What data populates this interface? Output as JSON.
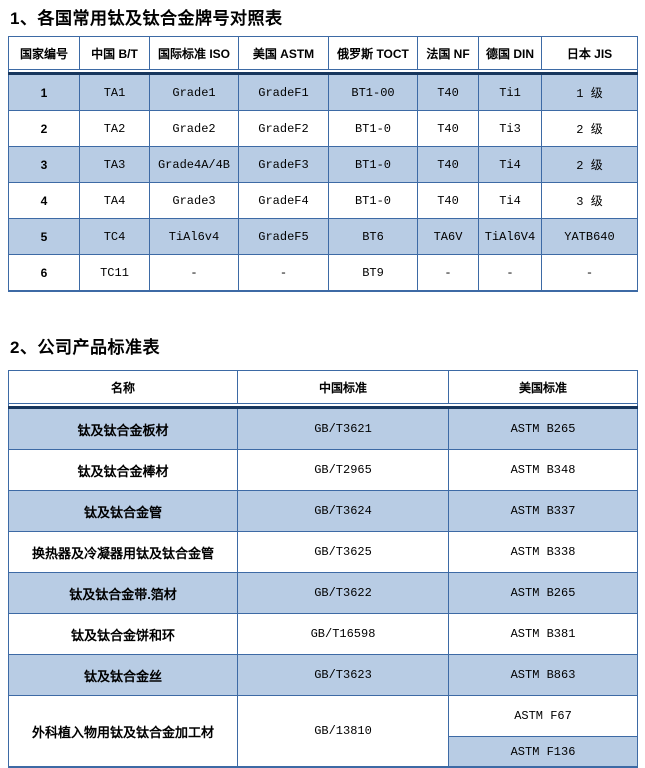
{
  "colors": {
    "row_shade": "#b8cce4",
    "grid_border": "#3d6aa5",
    "header_rule": "#17365d",
    "text": "#000000"
  },
  "section1": {
    "title": "1、各国常用钛及钛合金牌号对照表",
    "table": {
      "headers": [
        "国家编号",
        "中国 B/T",
        "国际标准 ISO",
        "美国 ASTM",
        "俄罗斯 TOCT",
        "法国 NF",
        "德国 DIN",
        "日本 JIS"
      ],
      "rows": [
        [
          "1",
          "TA1",
          "Grade1",
          "GradeF1",
          "BT1-00",
          "T40",
          "Ti1",
          "1 级"
        ],
        [
          "2",
          "TA2",
          "Grade2",
          "GradeF2",
          "BT1-0",
          "T40",
          "Ti3",
          "2 级"
        ],
        [
          "3",
          "TA3",
          "Grade4A/4B",
          "GradeF3",
          "BT1-0",
          "T40",
          "Ti4",
          "2 级"
        ],
        [
          "4",
          "TA4",
          "Grade3",
          "GradeF4",
          "BT1-0",
          "T40",
          "Ti4",
          "3 级"
        ],
        [
          "5",
          "TC4",
          "TiAl6v4",
          "GradeF5",
          "BT6",
          "TA6V",
          "TiAl6V4",
          "YATB640"
        ],
        [
          "6",
          "TC11",
          "-",
          "-",
          "BT9",
          "-",
          "-",
          "-"
        ]
      ]
    }
  },
  "section2": {
    "title": "2、公司产品标准表",
    "table": {
      "headers": [
        "名称",
        "中国标准",
        "美国标准"
      ],
      "rows": [
        {
          "name": "钛及钛合金板材",
          "cn": "GB/T3621",
          "us": [
            "ASTM B265"
          ]
        },
        {
          "name": "钛及钛合金棒材",
          "cn": "GB/T2965",
          "us": [
            "ASTM B348"
          ]
        },
        {
          "name": "钛及钛合金管",
          "cn": "GB/T3624",
          "us": [
            "ASTM B337"
          ]
        },
        {
          "name": "换热器及冷凝器用钛及钛合金管",
          "cn": "GB/T3625",
          "us": [
            "ASTM B338"
          ]
        },
        {
          "name": "钛及钛合金带.箔材",
          "cn": "GB/T3622",
          "us": [
            "ASTM B265"
          ]
        },
        {
          "name": "钛及钛合金饼和环",
          "cn": "GB/T16598",
          "us": [
            "ASTM B381"
          ]
        },
        {
          "name": "钛及钛合金丝",
          "cn": "GB/T3623",
          "us": [
            "ASTM B863"
          ]
        },
        {
          "name": "外科植入物用钛及钛合金加工材",
          "cn": "GB/13810",
          "us": [
            "ASTM F67",
            "ASTM F136"
          ]
        }
      ]
    }
  }
}
